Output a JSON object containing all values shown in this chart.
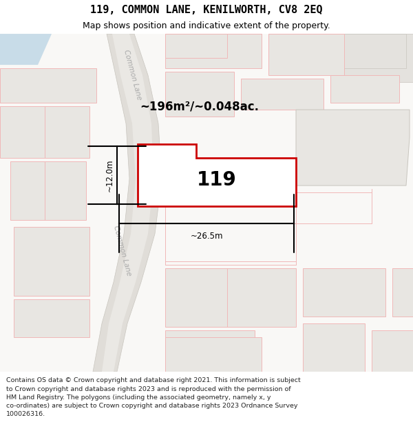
{
  "title": "119, COMMON LANE, KENILWORTH, CV8 2EQ",
  "subtitle": "Map shows position and indicative extent of the property.",
  "footer_lines": [
    "Contains OS data © Crown copyright and database right 2021. This information is subject",
    "to Crown copyright and database rights 2023 and is reproduced with the permission of",
    "HM Land Registry. The polygons (including the associated geometry, namely x, y",
    "co-ordinates) are subject to Crown copyright and database rights 2023 Ordnance Survey",
    "100026316."
  ],
  "area_label": "~196m²/~0.048ac.",
  "number_label": "119",
  "width_label": "~26.5m",
  "height_label": "~12.0m",
  "map_bg": "#f9f8f6",
  "building_fill": "#e8e6e2",
  "building_edge": "#e8a0a0",
  "road_fill": "#e0ddd7",
  "road_edge": "#c8c5be",
  "pink_line": "#f0b8b8",
  "highlight_fill": "#ffffff",
  "highlight_border": "#cc0000",
  "title_fontsize": 11,
  "subtitle_fontsize": 9,
  "footer_fontsize": 6.8,
  "label_color": "#aaaaaa"
}
